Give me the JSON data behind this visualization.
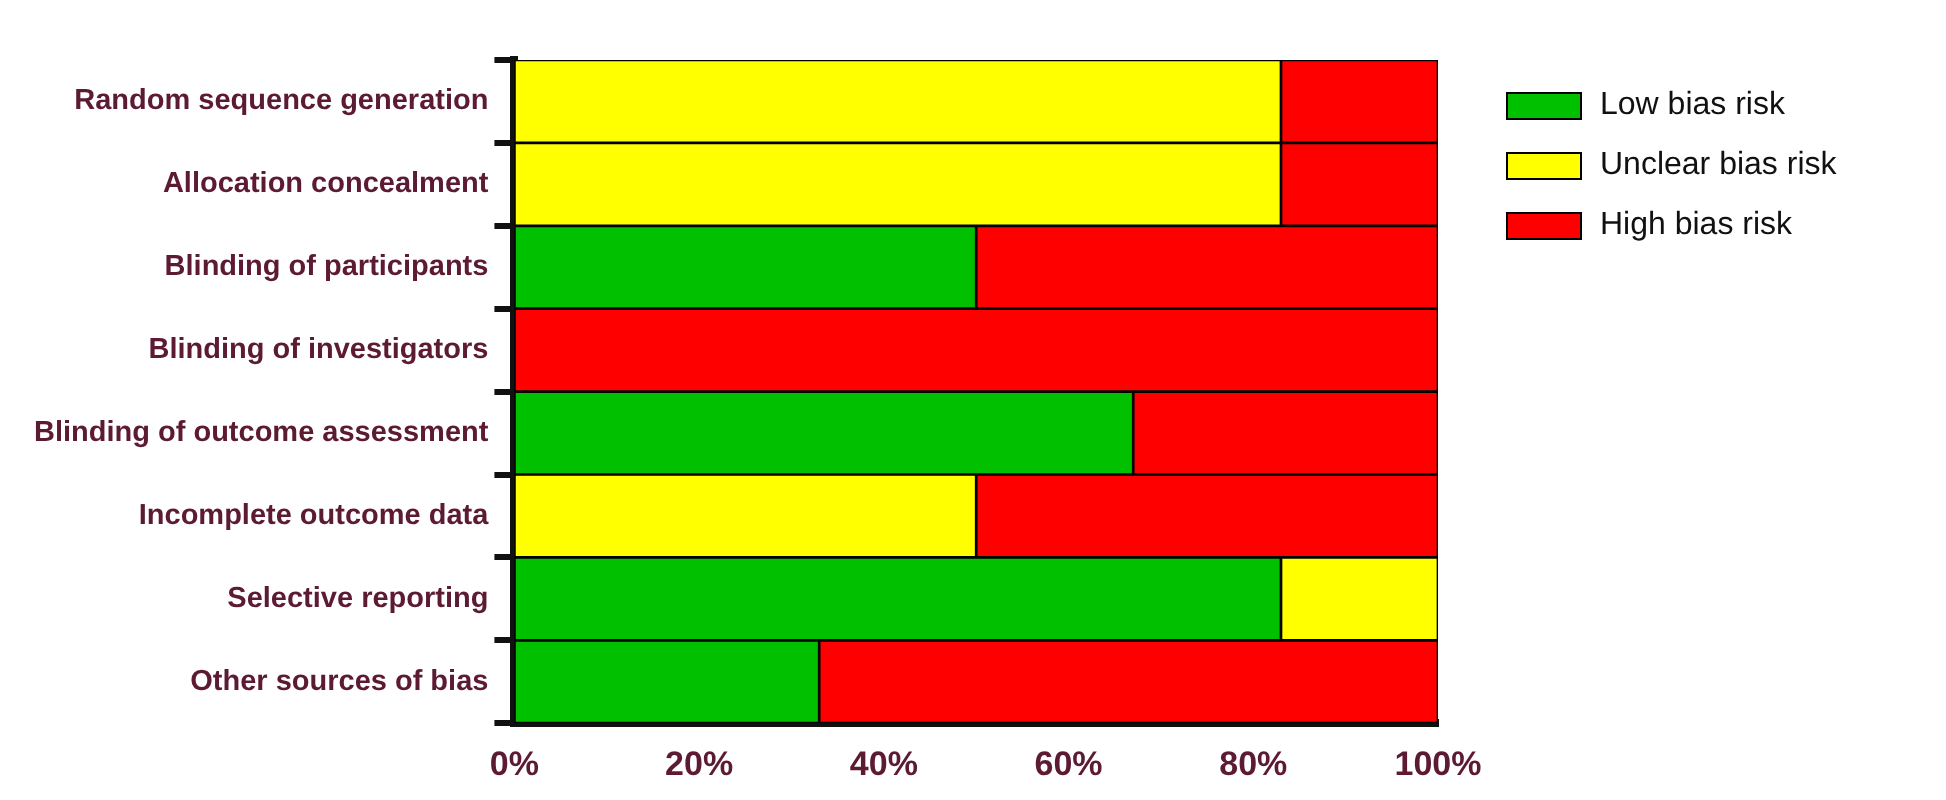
{
  "chart_data": {
    "type": "bar",
    "orientation": "horizontal",
    "stacked": true,
    "categories": [
      "Random sequence generation",
      "Allocation concealment",
      "Blinding of participants",
      "Blinding of investigators",
      "Blinding of outcome assessment",
      "Incomplete outcome data",
      "Selective reporting",
      "Other sources of bias"
    ],
    "series": [
      {
        "name": "Low bias risk",
        "color": "#00c000",
        "values": [
          0,
          0,
          50,
          0,
          67,
          0,
          83,
          33
        ]
      },
      {
        "name": "Unclear bias risk",
        "color": "#ffff00",
        "values": [
          83,
          83,
          0,
          0,
          0,
          50,
          17,
          0
        ]
      },
      {
        "name": "High bias risk",
        "color": "#ff0000",
        "values": [
          17,
          17,
          50,
          100,
          33,
          50,
          0,
          67
        ]
      }
    ],
    "xlim": [
      0,
      100
    ],
    "xticks": [
      {
        "value": 0,
        "label": "0%"
      },
      {
        "value": 20,
        "label": "20%"
      },
      {
        "value": 40,
        "label": "40%"
      },
      {
        "value": 60,
        "label": "60%"
      },
      {
        "value": 80,
        "label": "80%"
      },
      {
        "value": 100,
        "label": "100%"
      }
    ],
    "grid": false,
    "legend": "top right"
  }
}
